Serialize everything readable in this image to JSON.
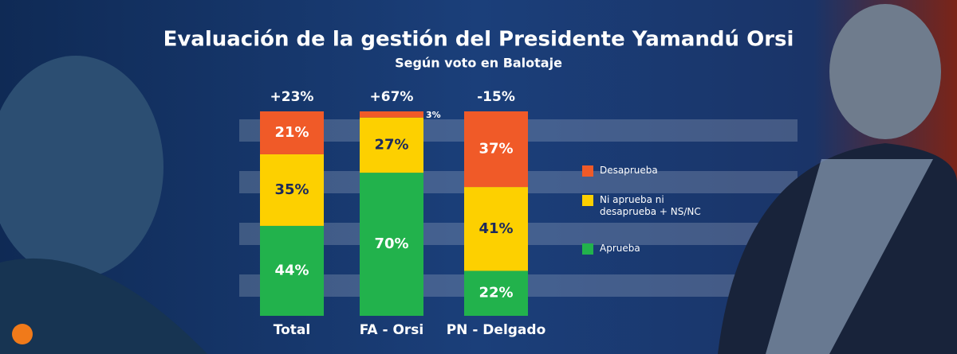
{
  "chart_data": {
    "type": "stacked_bar",
    "title": "Evaluación de la gestión del Presidente Yamandú Orsi",
    "subtitle": "Según voto en Balotaje",
    "categories": [
      "Total",
      "FA - Orsi",
      "PN - Delgado"
    ],
    "series": [
      {
        "name": "Aprueba",
        "color": "#22b24c",
        "values": [
          44,
          70,
          22
        ],
        "value_labels": [
          "44%",
          "70%",
          "22%"
        ]
      },
      {
        "name": "Ni aprueba ni desaprueba + NS/NC",
        "color": "#fdd000",
        "values": [
          35,
          27,
          41
        ],
        "value_labels": [
          "35%",
          "27%",
          "41%"
        ]
      },
      {
        "name": "Desaprueba",
        "color": "#f05a28",
        "values": [
          21,
          3,
          37
        ],
        "value_labels": [
          "21%",
          "3%",
          "37%"
        ]
      }
    ],
    "net": {
      "values": [
        23,
        67,
        -15
      ],
      "value_labels": [
        "+23%",
        "+67%",
        "-15%"
      ]
    }
  }
}
